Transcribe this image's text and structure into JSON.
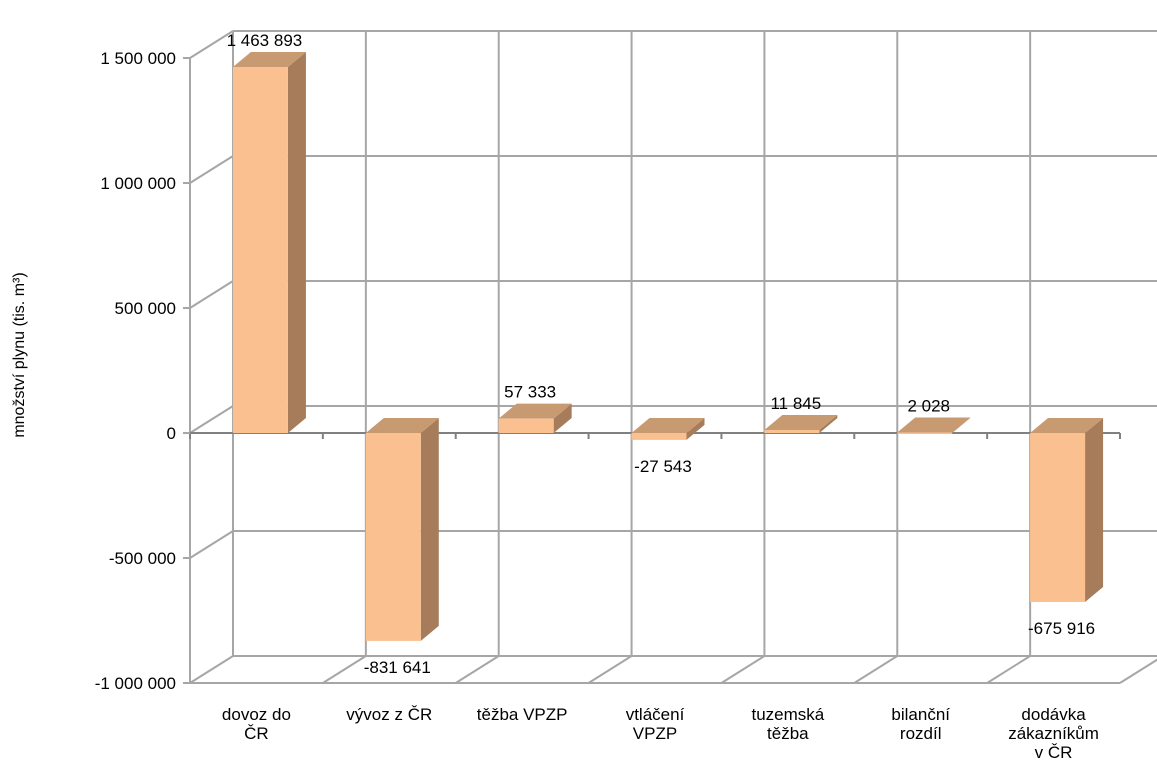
{
  "chart_data": {
    "type": "bar",
    "three_d": true,
    "categories": [
      [
        "dovoz do",
        "ČR"
      ],
      [
        "vývoz z ČR"
      ],
      [
        "těžba VPZP"
      ],
      [
        "vtláčení",
        "VPZP"
      ],
      [
        "tuzemská",
        "těžba"
      ],
      [
        "bilanční",
        "rozdíl"
      ],
      [
        "dodávka",
        "zákazníkům",
        "v ČR"
      ]
    ],
    "values": [
      1463893,
      -831641,
      57333,
      -27543,
      11845,
      2028,
      -675916
    ],
    "value_labels": [
      "1 463 893",
      "-831 641",
      "57 333",
      "-27 543",
      "11 845",
      "2 028",
      "-675 916"
    ],
    "ylabel": "množství plynu (tis. m³)",
    "ylim": [
      -1000000,
      1500000
    ],
    "yticks": [
      {
        "value": 1500000,
        "label": "1 500 000"
      },
      {
        "value": 1000000,
        "label": "1 000 000"
      },
      {
        "value": 500000,
        "label": "500 000"
      },
      {
        "value": 0,
        "label": "0"
      },
      {
        "value": -500000,
        "label": "-500 000"
      },
      {
        "value": -1000000,
        "label": "-1 000 000"
      }
    ],
    "grid": true,
    "legend": "none",
    "colors": {
      "front": "#FAC090",
      "side": "#A67C5A",
      "top": "#C89A72",
      "grid": "#A6A6A6",
      "axis": "#808080"
    }
  }
}
